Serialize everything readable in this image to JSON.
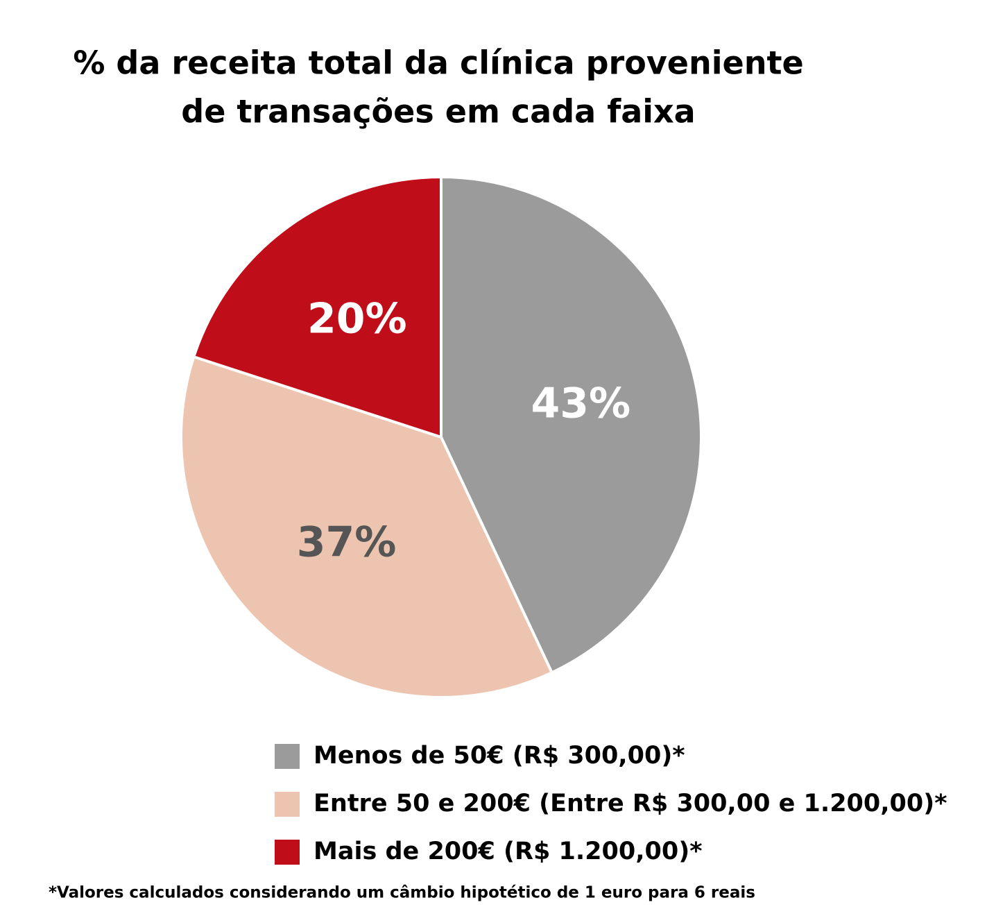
{
  "chart_data": {
    "type": "pie",
    "title": [
      "% da receita total da clínica proveniente",
      "de transações em cada faixa"
    ],
    "categories": [
      "Menos de 50€ (R$ 300,00)*",
      "Entre 50 e 200€ (Entre R$ 300,00 e 1.200,00)*",
      "Mais de 200€ (R$ 1.200,00)*"
    ],
    "values": [
      43,
      37,
      20
    ],
    "value_labels": [
      "43%",
      "37%",
      "20%"
    ],
    "colors": [
      "#9b9b9b",
      "#ecc4b0",
      "#c00d1a"
    ],
    "label_colors": [
      "#ffffff",
      "#555555",
      "#ffffff"
    ],
    "footnote": "*Valores calculados considerando um câmbio hipotético de 1 euro para 6 reais"
  }
}
